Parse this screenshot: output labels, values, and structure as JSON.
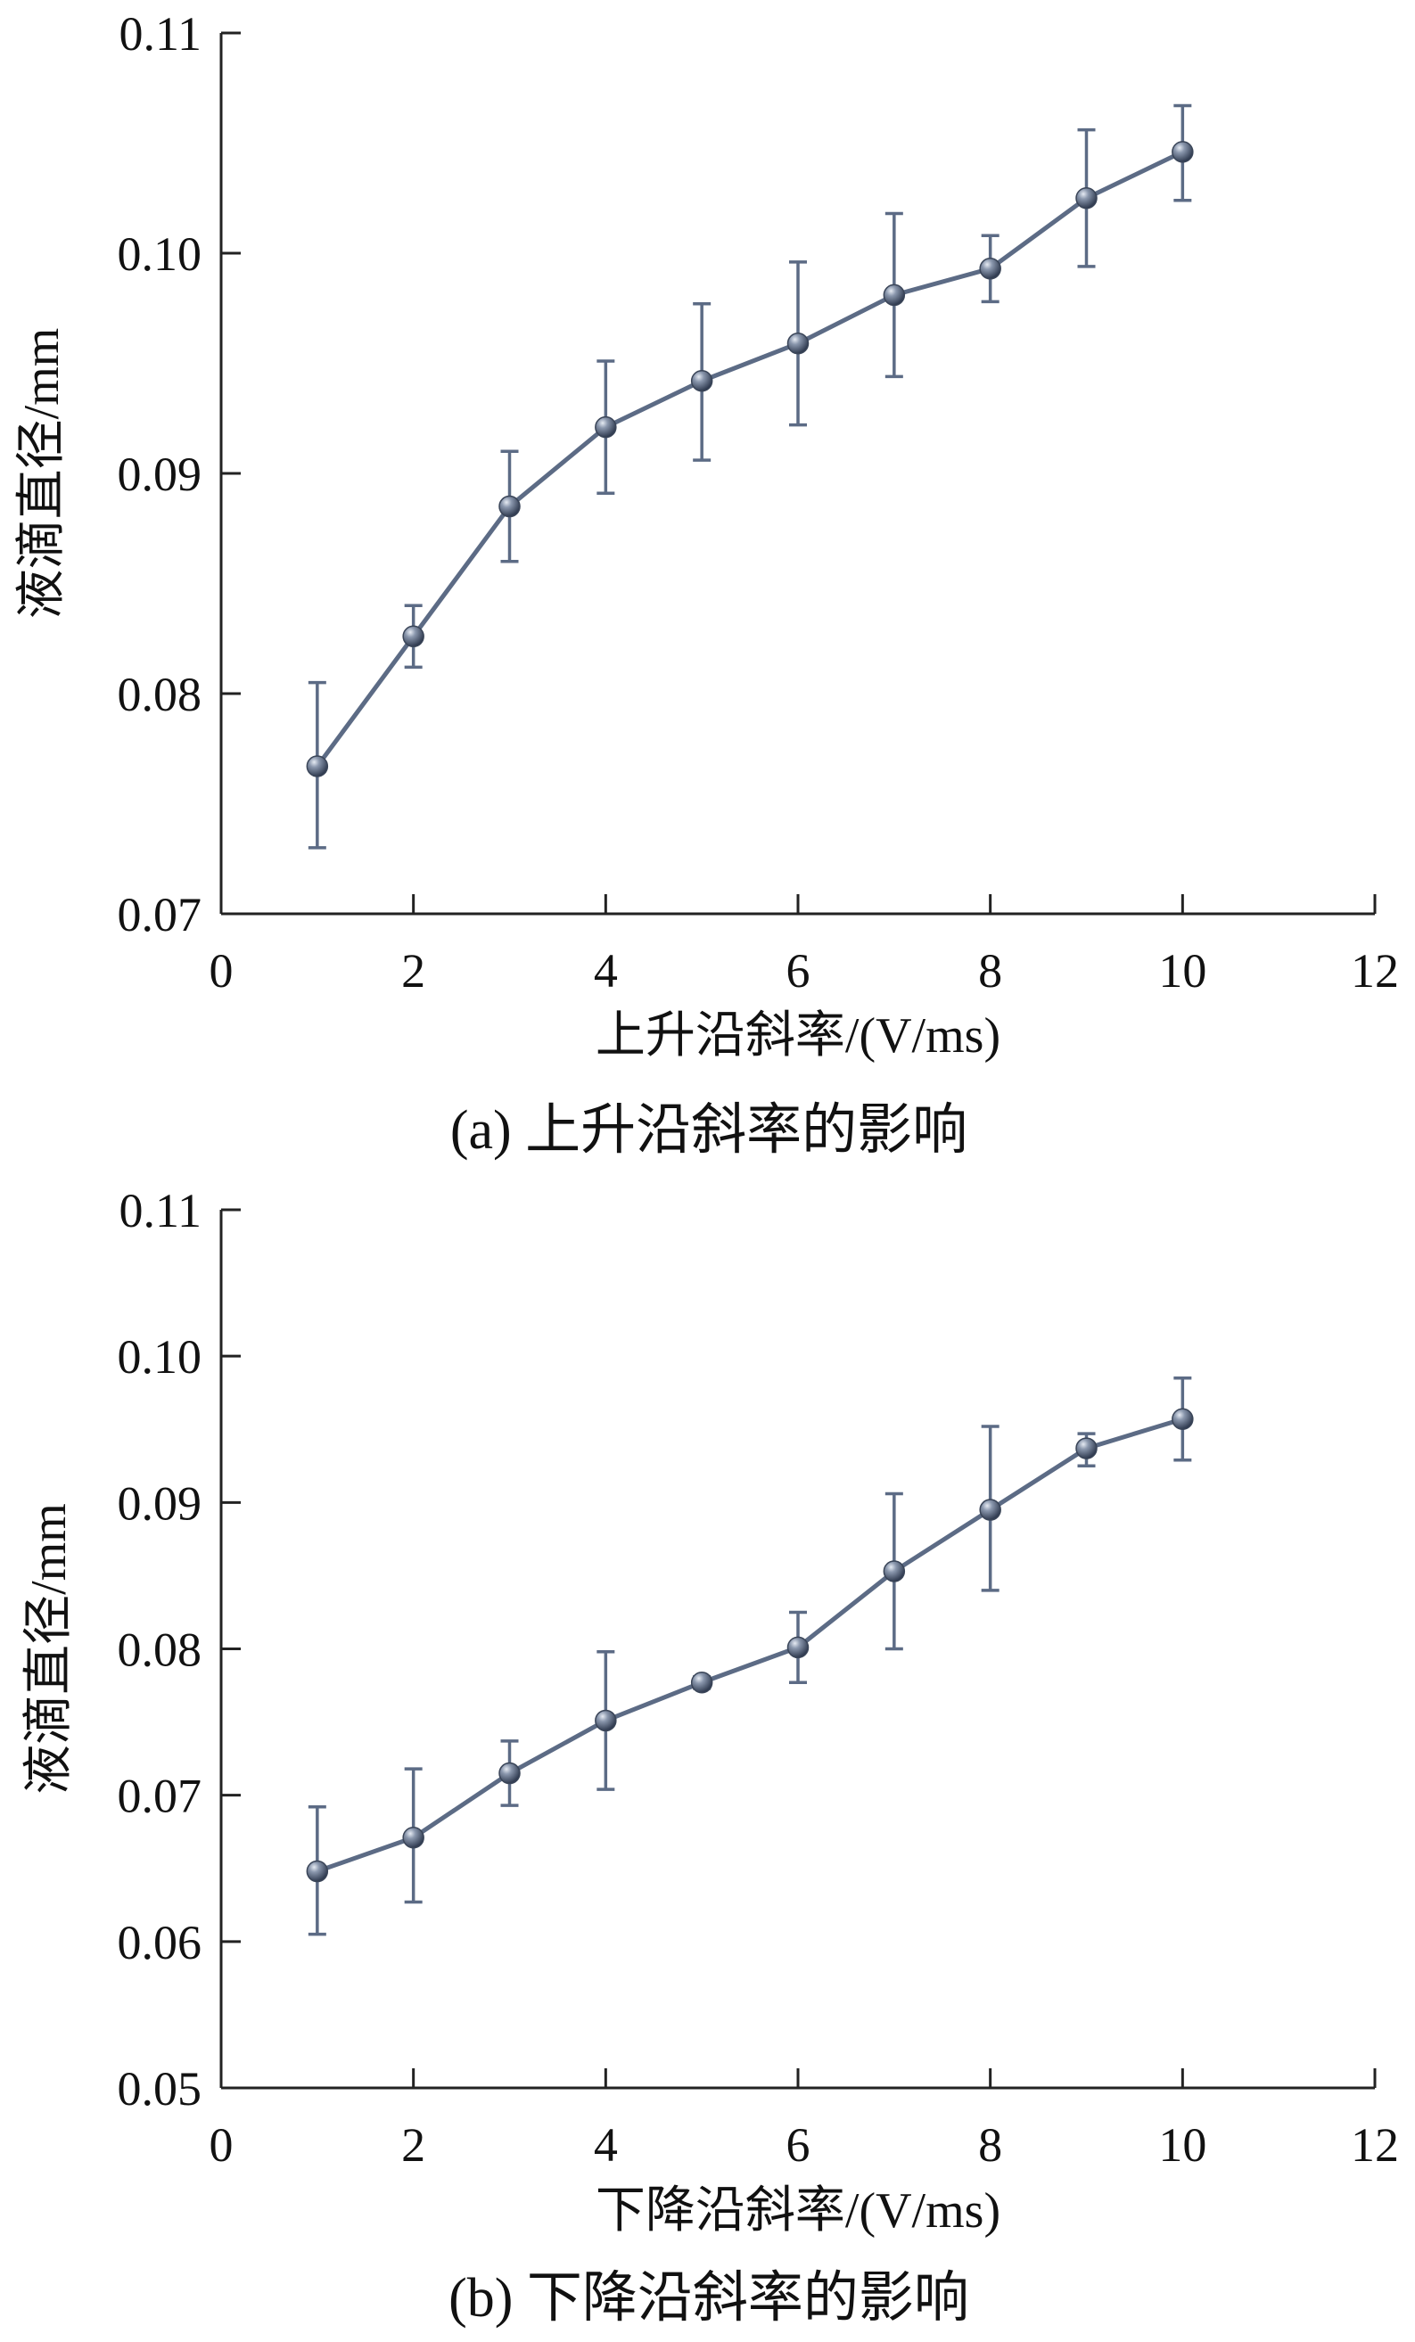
{
  "chart_data": [
    {
      "type": "line",
      "caption": "(a)  上升沿斜率的影响",
      "xlabel": "上升沿斜率/(V/ms)",
      "ylabel": "液滴直径/mm",
      "xlim": [
        0,
        12
      ],
      "ylim": [
        0.07,
        0.11
      ],
      "xticks": [
        "0",
        "2",
        "4",
        "6",
        "8",
        "10",
        "12"
      ],
      "yticks": [
        "0.07",
        "0.08",
        "0.09",
        "0.10",
        "0.11"
      ],
      "grid": false,
      "x": [
        1,
        2,
        3,
        4,
        5,
        6,
        7,
        8,
        9,
        10
      ],
      "y": [
        0.0767,
        0.0826,
        0.0885,
        0.0921,
        0.0942,
        0.0959,
        0.0981,
        0.0993,
        0.1025,
        0.1046
      ],
      "err_low": [
        0.073,
        0.0812,
        0.086,
        0.0891,
        0.0906,
        0.0922,
        0.0944,
        0.0978,
        0.0994,
        0.1024
      ],
      "err_high": [
        0.0805,
        0.084,
        0.091,
        0.0951,
        0.0977,
        0.0996,
        0.1018,
        0.1008,
        0.1056,
        0.1067
      ],
      "color": "#5c6b85"
    },
    {
      "type": "line",
      "caption": "(b)  下降沿斜率的影响",
      "xlabel": "下降沿斜率/(V/ms)",
      "ylabel": "液滴直径/mm",
      "xlim": [
        0,
        12
      ],
      "ylim": [
        0.05,
        0.11
      ],
      "xticks": [
        "0",
        "2",
        "4",
        "6",
        "8",
        "10",
        "12"
      ],
      "yticks": [
        "0.05",
        "0.06",
        "0.07",
        "0.08",
        "0.09",
        "0.10",
        "0.11"
      ],
      "grid": false,
      "x": [
        1,
        2,
        3,
        4,
        5,
        6,
        7,
        8,
        9,
        10
      ],
      "y": [
        0.0648,
        0.0671,
        0.0715,
        0.0751,
        0.0777,
        0.0801,
        0.0853,
        0.0895,
        0.0937,
        0.0957
      ],
      "err_low": [
        0.0605,
        0.0627,
        0.0693,
        0.0704,
        0.0773,
        0.0777,
        0.08,
        0.084,
        0.0925,
        0.0929
      ],
      "err_high": [
        0.0692,
        0.0718,
        0.0737,
        0.0798,
        0.0781,
        0.0825,
        0.0906,
        0.0952,
        0.0947,
        0.0985
      ],
      "color": "#5c6b85"
    }
  ]
}
